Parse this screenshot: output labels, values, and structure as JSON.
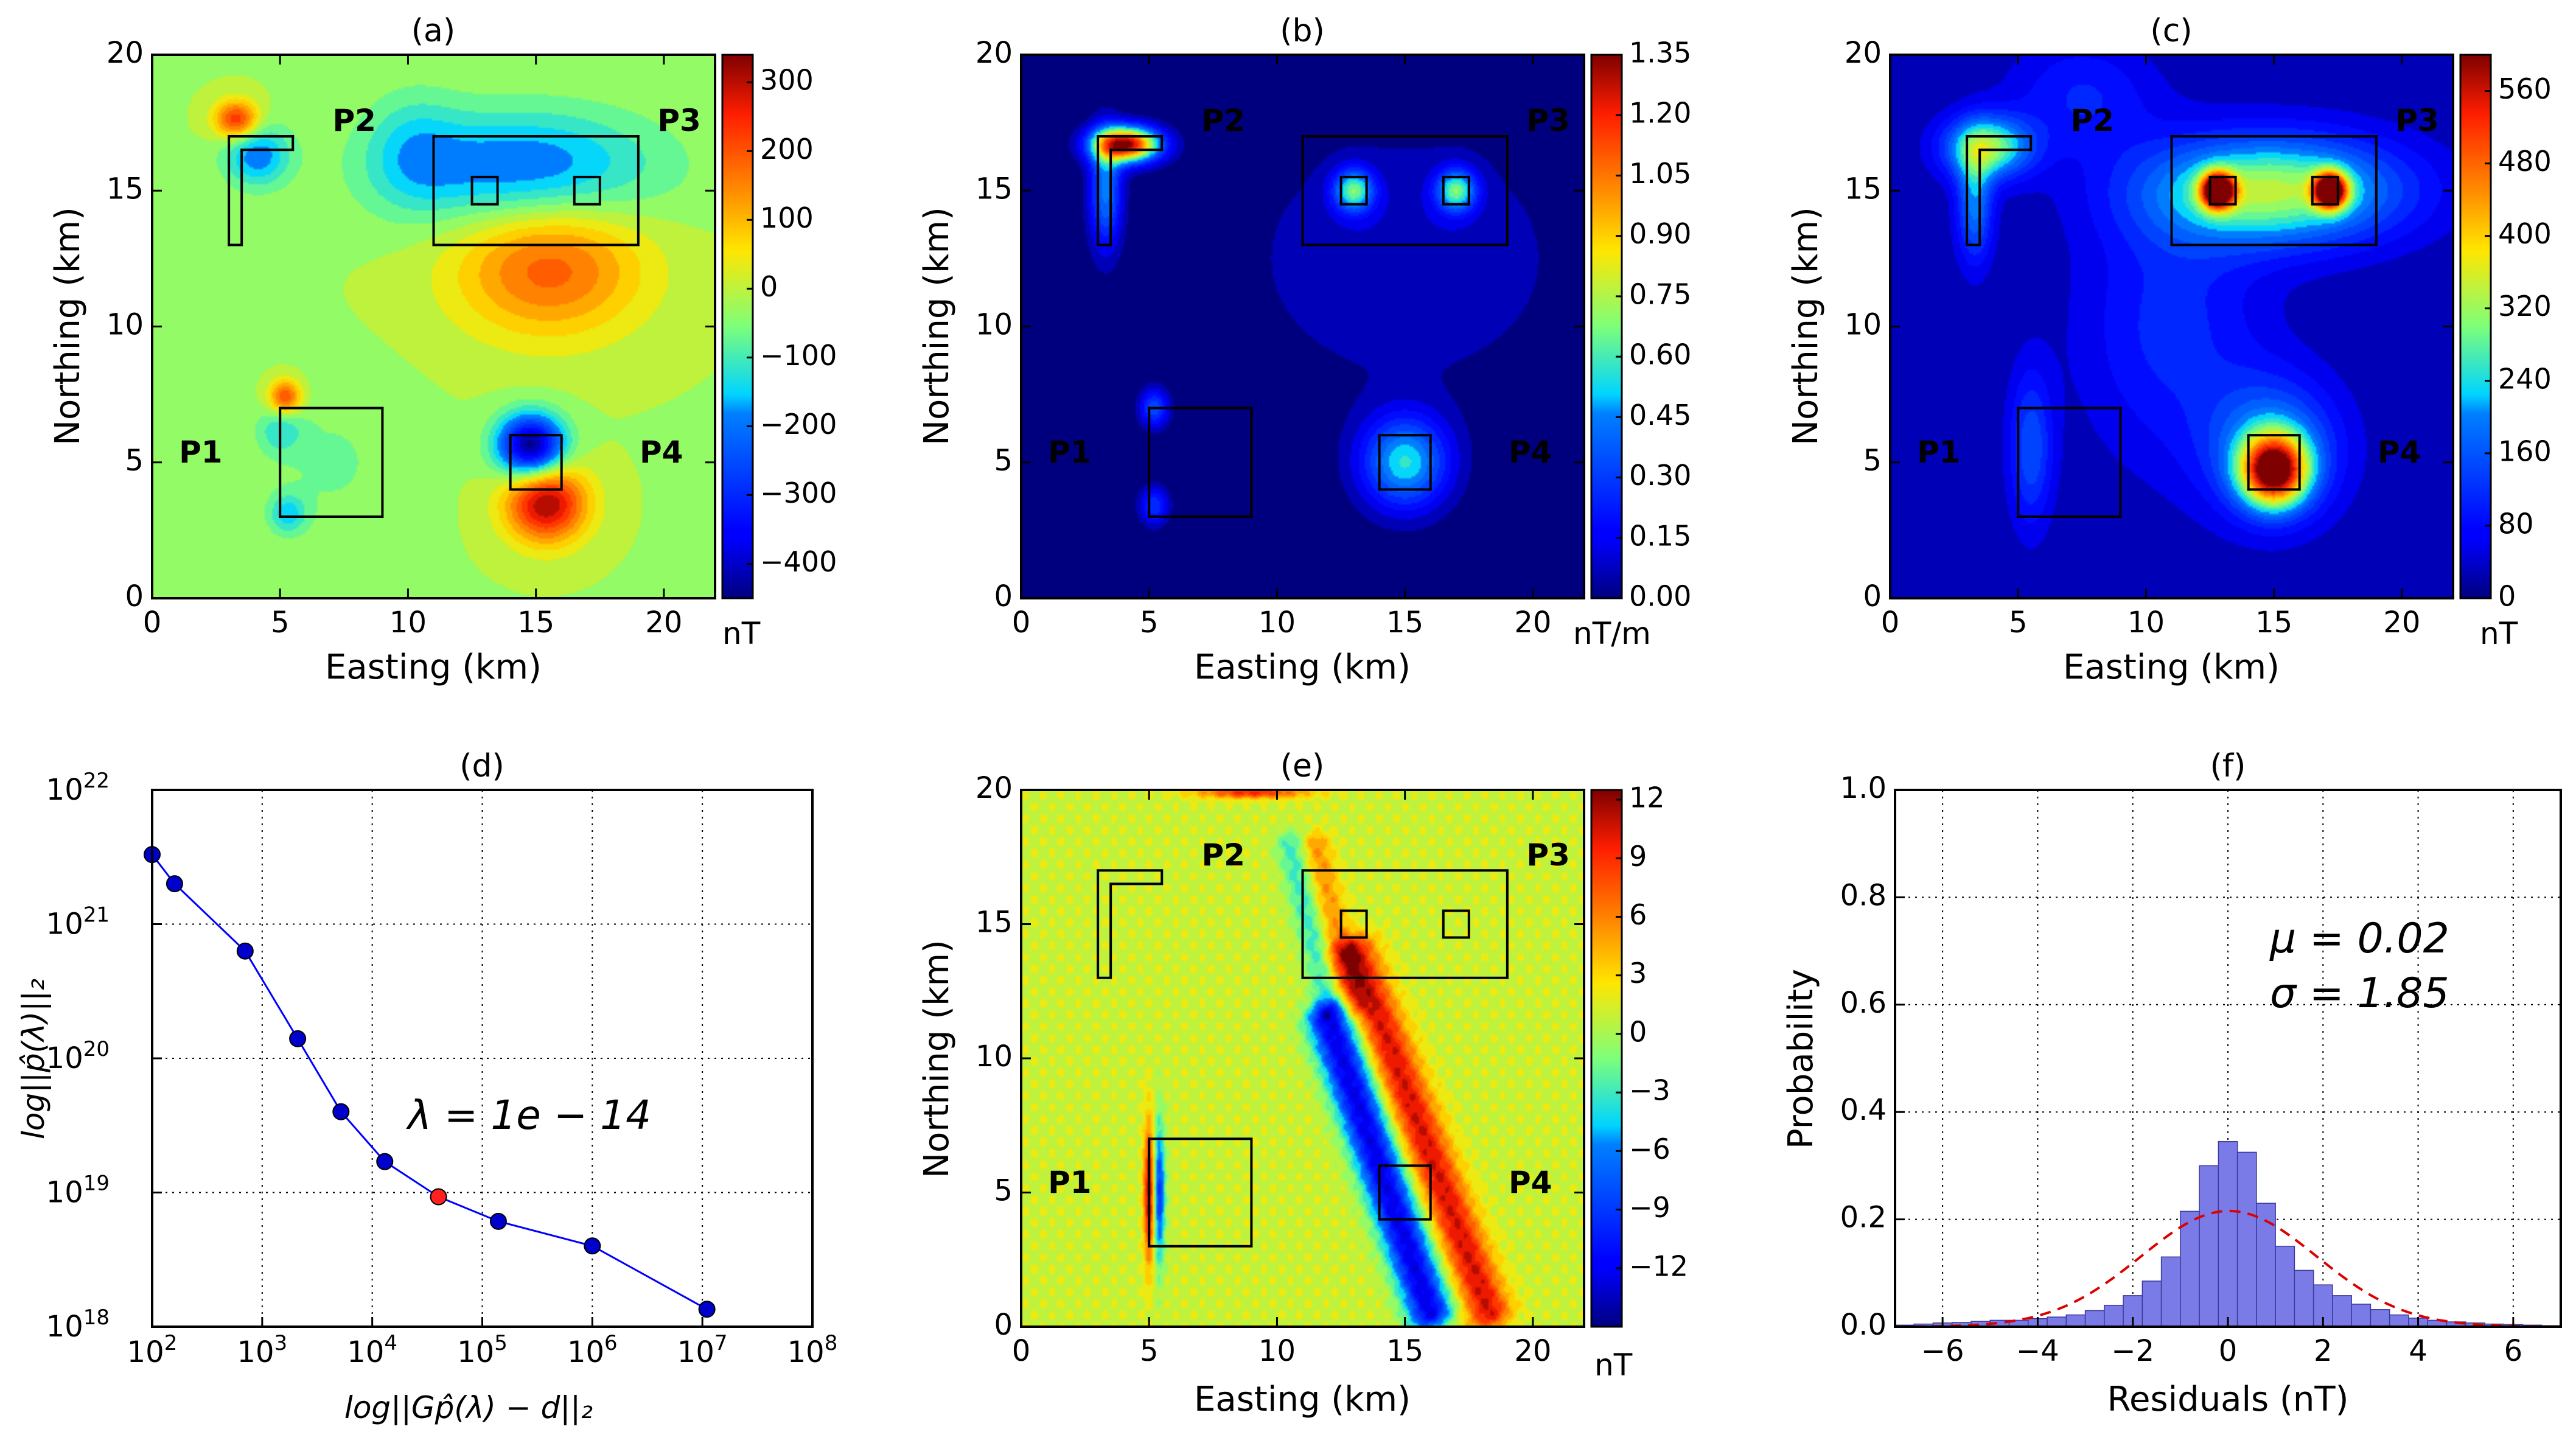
{
  "chart_data": [
    {
      "id": "a",
      "type": "heatmap",
      "title": "(a)",
      "xlabel": "Easting (km)",
      "ylabel": "Northing (km)",
      "xlim": [
        0,
        22
      ],
      "ylim": [
        0,
        20
      ],
      "xticks": [
        0,
        5,
        10,
        15,
        20
      ],
      "yticks": [
        0,
        5,
        10,
        15,
        20
      ],
      "colorbar": {
        "label": "nT",
        "min": -450,
        "max": 340,
        "ticks": [
          300,
          200,
          100,
          0,
          -100,
          -200,
          -300,
          -400
        ]
      },
      "labels": [
        {
          "text": "P2",
          "x": 7.9,
          "y": 17.5
        },
        {
          "text": "P3",
          "x": 20.6,
          "y": 17.5
        },
        {
          "text": "P1",
          "x": 1.9,
          "y": 5.3
        },
        {
          "text": "P4",
          "x": 19.9,
          "y": 5.3
        }
      ],
      "background": -20,
      "blobs": [
        {
          "x": 15.5,
          "y": 12.2,
          "sx": 2.6,
          "sy": 1.8,
          "v": 200
        },
        {
          "x": 14.5,
          "y": 15.8,
          "sx": 3.6,
          "sy": 1.5,
          "v": -190
        },
        {
          "x": 3.3,
          "y": 17.6,
          "sx": 0.6,
          "sy": 0.5,
          "v": 260
        },
        {
          "x": 4.1,
          "y": 16.3,
          "sx": 0.9,
          "sy": 0.8,
          "v": -170
        },
        {
          "x": 10.2,
          "y": 16.5,
          "sx": 1.3,
          "sy": 1.5,
          "v": -80
        },
        {
          "x": 15.4,
          "y": 3.5,
          "sx": 1.1,
          "sy": 1.0,
          "v": 330
        },
        {
          "x": 14.8,
          "y": 5.6,
          "sx": 0.9,
          "sy": 0.8,
          "v": -430
        },
        {
          "x": 5.2,
          "y": 7.4,
          "sx": 0.45,
          "sy": 0.45,
          "v": 230
        },
        {
          "x": 5.0,
          "y": 6.2,
          "sx": 0.6,
          "sy": 0.6,
          "v": -90
        },
        {
          "x": 7.0,
          "y": 5.0,
          "sx": 2.0,
          "sy": 2.0,
          "v": -40
        },
        {
          "x": 5.3,
          "y": 3.1,
          "sx": 0.5,
          "sy": 0.5,
          "v": -120
        }
      ]
    },
    {
      "id": "b",
      "type": "heatmap",
      "title": "(b)",
      "xlabel": "Easting (km)",
      "ylabel": "Northing (km)",
      "xlim": [
        0,
        22
      ],
      "ylim": [
        0,
        20
      ],
      "xticks": [
        0,
        5,
        10,
        15,
        20
      ],
      "yticks": [
        0,
        5,
        10,
        15,
        20
      ],
      "colorbar": {
        "label": "nT/m",
        "min": 0,
        "max": 1.35,
        "ticks": [
          "1.35",
          "1.20",
          "1.05",
          "0.90",
          "0.75",
          "0.60",
          "0.45",
          "0.30",
          "0.15",
          "0.00"
        ]
      },
      "labels": [
        {
          "text": "P2",
          "x": 7.9,
          "y": 17.5
        },
        {
          "text": "P3",
          "x": 20.6,
          "y": 17.5
        },
        {
          "text": "P1",
          "x": 1.9,
          "y": 5.3
        },
        {
          "text": "P4",
          "x": 19.9,
          "y": 5.3
        }
      ],
      "background": 0.0,
      "blobs": [
        {
          "x": 4.1,
          "y": 16.7,
          "sx": 0.9,
          "sy": 0.45,
          "v": 1.3
        },
        {
          "x": 3.3,
          "y": 15.0,
          "sx": 0.45,
          "sy": 1.5,
          "v": 0.45
        },
        {
          "x": 13.0,
          "y": 15.0,
          "sx": 0.55,
          "sy": 0.55,
          "v": 0.6
        },
        {
          "x": 17.0,
          "y": 15.0,
          "sx": 0.55,
          "sy": 0.55,
          "v": 0.6
        },
        {
          "x": 15.0,
          "y": 12.5,
          "sx": 4.5,
          "sy": 3.5,
          "v": 0.12
        },
        {
          "x": 15.0,
          "y": 5.0,
          "sx": 1.2,
          "sy": 1.2,
          "v": 0.55
        },
        {
          "x": 5.2,
          "y": 7.0,
          "sx": 0.4,
          "sy": 0.5,
          "v": 0.35
        },
        {
          "x": 5.2,
          "y": 3.4,
          "sx": 0.4,
          "sy": 0.5,
          "v": 0.3
        }
      ]
    },
    {
      "id": "c",
      "type": "heatmap",
      "title": "(c)",
      "xlabel": "Easting (km)",
      "ylabel": "Northing (km)",
      "xlim": [
        0,
        22
      ],
      "ylim": [
        0,
        20
      ],
      "xticks": [
        0,
        5,
        10,
        15,
        20
      ],
      "yticks": [
        0,
        5,
        10,
        15,
        20
      ],
      "colorbar": {
        "label": "nT",
        "min": 0,
        "max": 600,
        "ticks": [
          560,
          480,
          400,
          320,
          240,
          160,
          80,
          0
        ]
      },
      "labels": [
        {
          "text": "P2",
          "x": 7.9,
          "y": 17.5
        },
        {
          "text": "P3",
          "x": 20.6,
          "y": 17.5
        },
        {
          "text": "P1",
          "x": 1.9,
          "y": 5.3
        },
        {
          "text": "P4",
          "x": 19.9,
          "y": 5.3
        }
      ],
      "background": 30,
      "blobs": [
        {
          "x": 12.8,
          "y": 15.0,
          "sx": 0.45,
          "sy": 0.45,
          "v": 560
        },
        {
          "x": 17.2,
          "y": 15.0,
          "sx": 0.45,
          "sy": 0.45,
          "v": 560
        },
        {
          "x": 15.0,
          "y": 15.0,
          "sx": 3.5,
          "sy": 1.4,
          "v": 300
        },
        {
          "x": 15.0,
          "y": 4.7,
          "sx": 0.9,
          "sy": 0.9,
          "v": 500
        },
        {
          "x": 15.0,
          "y": 5.5,
          "sx": 1.8,
          "sy": 1.8,
          "v": 180
        },
        {
          "x": 3.8,
          "y": 16.6,
          "sx": 1.2,
          "sy": 0.8,
          "v": 280
        },
        {
          "x": 3.3,
          "y": 14.5,
          "sx": 0.5,
          "sy": 1.5,
          "v": 170
        },
        {
          "x": 5.5,
          "y": 5.5,
          "sx": 0.6,
          "sy": 2.0,
          "v": 130
        },
        {
          "x": 11.0,
          "y": 10.0,
          "sx": 2.5,
          "sy": 3.5,
          "v": 90
        },
        {
          "x": 7.5,
          "y": 18.5,
          "sx": 2.0,
          "sy": 1.5,
          "v": 80
        }
      ]
    },
    {
      "id": "d",
      "type": "line",
      "title": "(d)",
      "xlabel": "log||Gp̂(λ) − d||₂",
      "ylabel": "log||p̂(λ)||₂",
      "xscale": "log",
      "yscale": "log",
      "xlim": [
        100,
        100000000
      ],
      "ylim": [
        1e+18,
        1e+22
      ],
      "xticks": [
        {
          "value": 100,
          "base": "10",
          "exp": "2"
        },
        {
          "value": 1000,
          "base": "10",
          "exp": "3"
        },
        {
          "value": 10000,
          "base": "10",
          "exp": "4"
        },
        {
          "value": 100000,
          "base": "10",
          "exp": "5"
        },
        {
          "value": 1000000,
          "base": "10",
          "exp": "6"
        },
        {
          "value": 10000000,
          "base": "10",
          "exp": "7"
        },
        {
          "value": 100000000,
          "base": "10",
          "exp": "8"
        }
      ],
      "yticks": [
        {
          "value": 1e+18,
          "base": "10",
          "exp": "18"
        },
        {
          "value": 1e+19,
          "base": "10",
          "exp": "19"
        },
        {
          "value": 1e+20,
          "base": "10",
          "exp": "20"
        },
        {
          "value": 1e+21,
          "base": "10",
          "exp": "21"
        },
        {
          "value": 1e+22,
          "base": "10",
          "exp": "22"
        }
      ],
      "annotation": "λ = 1e − 14",
      "series": [
        {
          "x": [
            100,
            160,
            700,
            2100,
            5200,
            13000,
            40000,
            140000,
            1000000,
            11000000
          ],
          "y": [
            3.3e+21,
            2e+21,
            6.3e+20,
            1.4e+20,
            4e+19,
            1.7e+19,
            9.3e+18,
            6.1e+18,
            4e+18,
            1.35e+18
          ]
        }
      ],
      "highlight_index": 6,
      "colors": {
        "line": "#0000ff",
        "point": "#0000cc",
        "highlight": "#ff2020"
      }
    },
    {
      "id": "e",
      "type": "heatmap",
      "title": "(e)",
      "xlabel": "Easting (km)",
      "ylabel": "Northing (km)",
      "xlim": [
        0,
        22
      ],
      "ylim": [
        0,
        20
      ],
      "xticks": [
        0,
        5,
        10,
        15,
        20
      ],
      "yticks": [
        0,
        5,
        10,
        15,
        20
      ],
      "colorbar": {
        "label": "nT",
        "min": -15,
        "max": 12.5,
        "ticks": [
          12,
          9,
          6,
          3,
          0,
          -3,
          -6,
          -9,
          -12
        ]
      },
      "labels": [
        {
          "text": "P2",
          "x": 7.9,
          "y": 17.5
        },
        {
          "text": "P3",
          "x": 20.6,
          "y": 17.5
        },
        {
          "text": "P1",
          "x": 1.9,
          "y": 5.3
        },
        {
          "text": "P4",
          "x": 19.9,
          "y": 5.3
        }
      ],
      "background": 1.0,
      "stripes": [
        {
          "x0": 12.0,
          "y0": 11.5,
          "x1": 16.0,
          "y1": 0.5,
          "w": 0.6,
          "v": -13
        },
        {
          "x0": 13.0,
          "y0": 14.0,
          "x1": 18.3,
          "y1": 0.5,
          "w": 0.6,
          "v": 9
        },
        {
          "x0": 11.5,
          "y0": 18.0,
          "x1": 13.0,
          "y1": 12.0,
          "w": 0.4,
          "v": 4
        },
        {
          "x0": 10.5,
          "y0": 18.0,
          "x1": 12.0,
          "y1": 12.0,
          "w": 0.4,
          "v": -4
        }
      ],
      "blobs": [
        {
          "x": 5.0,
          "y": 5.0,
          "sx": 0.15,
          "sy": 1.8,
          "v": 10
        },
        {
          "x": 5.4,
          "y": 5.0,
          "sx": 0.15,
          "sy": 1.8,
          "v": -10
        },
        {
          "x": 9.0,
          "y": 19.9,
          "sx": 1.5,
          "sy": 0.15,
          "v": 8
        }
      ]
    },
    {
      "id": "f",
      "type": "bar",
      "title": "(f)",
      "xlabel": "Residuals (nT)",
      "ylabel": "Probability",
      "xlim": [
        -7,
        7
      ],
      "ylim": [
        0,
        1.0
      ],
      "xticks": [
        -6,
        -4,
        -2,
        0,
        2,
        4,
        6
      ],
      "yticks": [
        "0.0",
        "0.2",
        "0.4",
        "0.6",
        "0.8",
        "1.0"
      ],
      "annotations": [
        "μ = 0.02",
        "σ = 1.85"
      ],
      "bin_width": 0.4,
      "bin_left_edges": [
        -7.0,
        -6.6,
        -6.2,
        -5.8,
        -5.4,
        -5.0,
        -4.6,
        -4.2,
        -3.8,
        -3.4,
        -3.0,
        -2.6,
        -2.2,
        -1.8,
        -1.4,
        -1.0,
        -0.6,
        -0.2,
        0.2,
        0.6,
        1.0,
        1.4,
        1.8,
        2.2,
        2.6,
        3.0,
        3.4,
        3.8,
        4.2,
        4.6,
        5.0,
        5.4,
        5.8,
        6.2,
        6.6
      ],
      "values": [
        0.003,
        0.005,
        0.007,
        0.008,
        0.01,
        0.012,
        0.012,
        0.015,
        0.018,
        0.022,
        0.03,
        0.04,
        0.058,
        0.085,
        0.13,
        0.215,
        0.3,
        0.345,
        0.325,
        0.23,
        0.15,
        0.105,
        0.078,
        0.058,
        0.042,
        0.032,
        0.022,
        0.016,
        0.012,
        0.009,
        0.007,
        0.005,
        0.004,
        0.003,
        0.002
      ],
      "fit": {
        "type": "normal",
        "mu": 0.02,
        "sigma": 1.85
      },
      "colors": {
        "bar": "#7b7be8",
        "bar_edge": "#3a3a9a",
        "fit": "#dd0000"
      }
    }
  ]
}
